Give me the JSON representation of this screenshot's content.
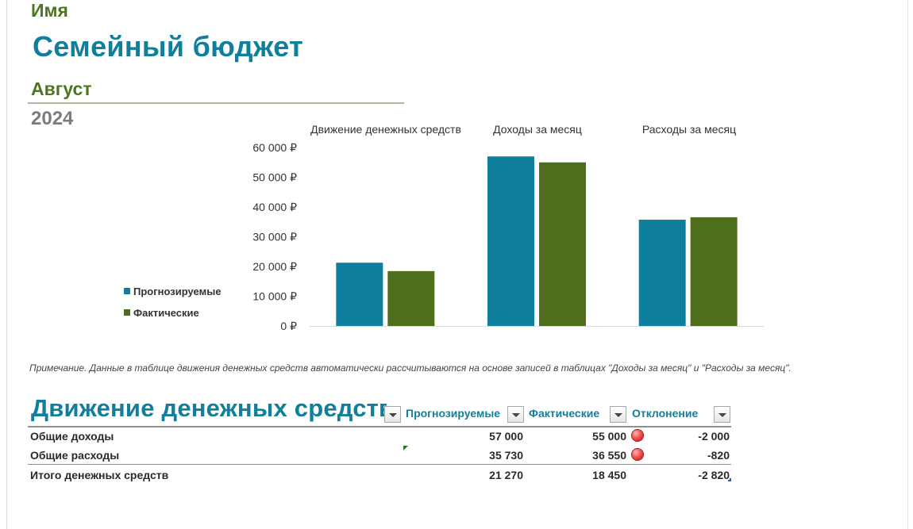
{
  "header": {
    "name_label": "Имя",
    "title": "Семейный бюджет",
    "month": "Август",
    "year": "2024"
  },
  "colors": {
    "teal": "#0f7f9c",
    "green": "#4e7520",
    "forecast_bar": "#0e7f9c",
    "actual_bar": "#4e6e1e",
    "indicator": "#e84040"
  },
  "chart_data": {
    "type": "bar",
    "categories": [
      "Движение денежных средств",
      "Доходы за месяц",
      "Расходы за месяц"
    ],
    "series": [
      {
        "name": "Прогнозируемые",
        "values": [
          21270,
          57000,
          35730
        ]
      },
      {
        "name": "Фактические",
        "values": [
          18450,
          55000,
          36550
        ]
      }
    ],
    "y_ticks": [
      "60 000 ₽",
      "50 000 ₽",
      "40 000 ₽",
      "30 000 ₽",
      "20 000 ₽",
      "10 000 ₽",
      "0 ₽"
    ],
    "ylim": [
      0,
      60000
    ],
    "legend_position": "left",
    "grid": false
  },
  "note": "Примечание. Данные в таблице движения денежных средств автоматически рассчитываются на основе записей в таблицах \"Доходы за месяц\" и \"Расходы за месяц\".",
  "cashflow_table": {
    "title": "Движение денежных средств",
    "columns": [
      "Прогнозируемые",
      "Фактические",
      "Отклонение"
    ],
    "rows": [
      {
        "label": "Общие доходы",
        "forecast": "57 000",
        "actual": "55 000",
        "diff": "-2 000",
        "indicator": "red-circle-icon"
      },
      {
        "label": "Общие расходы",
        "forecast": "35 730",
        "actual": "36 550",
        "diff": "-820",
        "indicator": "red-circle-icon"
      }
    ],
    "total": {
      "label": "Итого денежных средств",
      "forecast": "21 270",
      "actual": "18 450",
      "diff": "-2 820"
    }
  }
}
